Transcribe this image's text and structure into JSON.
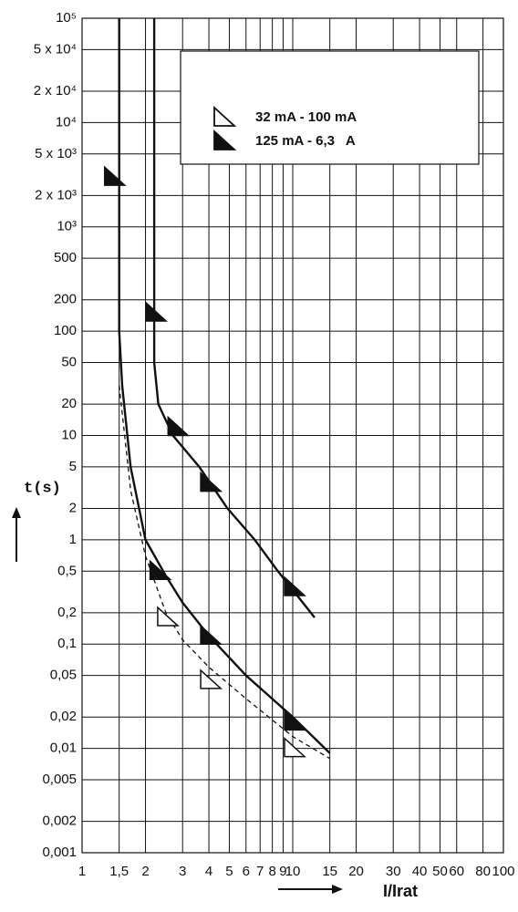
{
  "chart_data": {
    "type": "line",
    "y_label": "t(s)",
    "x_label": "I/Irat",
    "log_x": true,
    "log_y": true,
    "grid": true,
    "xlim": [
      1,
      100
    ],
    "ylim": [
      0.001,
      100000
    ],
    "xticks": [
      1,
      {
        "value": 1.5,
        "label": "1,5"
      },
      2,
      3,
      4,
      5,
      6,
      7,
      8,
      9,
      10,
      15,
      20,
      30,
      40,
      50,
      60,
      80,
      100
    ],
    "yticks": [
      {
        "value": 100000,
        "label": "10⁵"
      },
      {
        "value": 50000,
        "label": "5 x 10⁴"
      },
      {
        "value": 20000,
        "label": "2 x 10⁴"
      },
      {
        "value": 10000,
        "label": "10⁴"
      },
      {
        "value": 5000,
        "label": "5 x 10³"
      },
      {
        "value": 2000,
        "label": "2 x 10³"
      },
      {
        "value": 1000,
        "label": "10³"
      },
      500,
      200,
      100,
      50,
      20,
      10,
      5,
      2,
      1,
      {
        "value": 0.5,
        "label": "0,5"
      },
      {
        "value": 0.2,
        "label": "0,2"
      },
      {
        "value": 0.1,
        "label": "0,1"
      },
      {
        "value": 0.05,
        "label": "0,05"
      },
      {
        "value": 0.02,
        "label": "0,02"
      },
      {
        "value": 0.01,
        "label": "0,01"
      },
      {
        "value": 0.005,
        "label": "0,005"
      },
      {
        "value": 0.002,
        "label": "0,002"
      },
      {
        "value": 0.001,
        "label": "0,001"
      }
    ],
    "curves": [
      {
        "dashed": false,
        "x": [
          1.5,
          1.5,
          1.55,
          1.7,
          2,
          2.5,
          3,
          4,
          6,
          10,
          15
        ],
        "values": [
          100000,
          100,
          30,
          5,
          1,
          0.45,
          0.25,
          0.12,
          0.05,
          0.02,
          0.009
        ]
      },
      {
        "dashed": true,
        "x": [
          1.5,
          1.7,
          2,
          2.5,
          3,
          4,
          6,
          10,
          15
        ],
        "values": [
          30,
          3,
          0.7,
          0.2,
          0.11,
          0.06,
          0.03,
          0.013,
          0.008
        ]
      },
      {
        "dashed": false,
        "x": [
          2.2,
          2.2,
          2.3,
          2.7,
          3.6,
          4.9,
          6.6,
          8.5,
          12.7
        ],
        "values": [
          100000,
          50,
          20,
          10,
          5,
          2,
          1,
          0.5,
          0.18
        ]
      }
    ],
    "series": [
      {
        "name": "32 mA - 100 mA",
        "filled": false,
        "color": "#111111",
        "x": [
          2.5,
          4,
          10
        ],
        "values": [
          0.18,
          0.045,
          0.01
        ]
      },
      {
        "name": "125 mA - 6,3   A",
        "filled": true,
        "color": "#111111",
        "x": [
          1.4,
          2.2,
          2.8,
          4,
          10,
          2.3,
          4,
          10
        ],
        "values": [
          3000,
          150,
          12,
          3.5,
          0.35,
          0.5,
          0.12,
          0.018
        ]
      }
    ]
  }
}
